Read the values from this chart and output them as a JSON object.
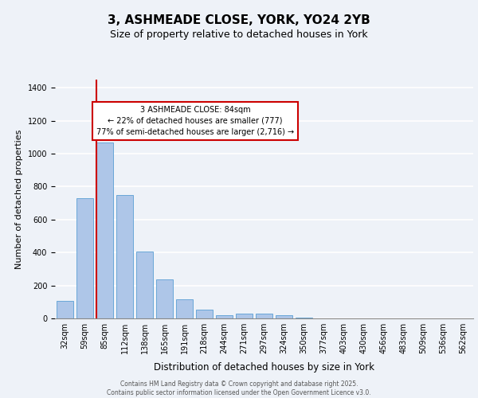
{
  "title": "3, ASHMEADE CLOSE, YORK, YO24 2YB",
  "subtitle": "Size of property relative to detached houses in York",
  "xlabel": "Distribution of detached houses by size in York",
  "ylabel": "Number of detached properties",
  "categories": [
    "32sqm",
    "59sqm",
    "85sqm",
    "112sqm",
    "138sqm",
    "165sqm",
    "191sqm",
    "218sqm",
    "244sqm",
    "271sqm",
    "297sqm",
    "324sqm",
    "350sqm",
    "377sqm",
    "403sqm",
    "430sqm",
    "456sqm",
    "483sqm",
    "509sqm",
    "536sqm",
    "562sqm"
  ],
  "values": [
    105,
    730,
    1070,
    750,
    405,
    238,
    118,
    55,
    18,
    30,
    28,
    18,
    5,
    0,
    0,
    0,
    0,
    0,
    0,
    0,
    0
  ],
  "bar_color": "#aec6e8",
  "bar_edge_color": "#5a9fd4",
  "vline_x": 1.575,
  "vline_color": "#cc0000",
  "annotation_text": "3 ASHMEADE CLOSE: 84sqm\n← 22% of detached houses are smaller (777)\n77% of semi-detached houses are larger (2,716) →",
  "annotation_box_facecolor": "#ffffff",
  "annotation_box_edgecolor": "#cc0000",
  "background_color": "#eef2f8",
  "grid_color": "#ffffff",
  "footer_text": "Contains HM Land Registry data © Crown copyright and database right 2025.\nContains public sector information licensed under the Open Government Licence v3.0.",
  "ylim": [
    0,
    1450
  ],
  "title_fontsize": 11,
  "subtitle_fontsize": 9,
  "ylabel_fontsize": 8,
  "xlabel_fontsize": 8.5,
  "tick_fontsize": 7,
  "annotation_fontsize": 7,
  "footer_fontsize": 5.5
}
